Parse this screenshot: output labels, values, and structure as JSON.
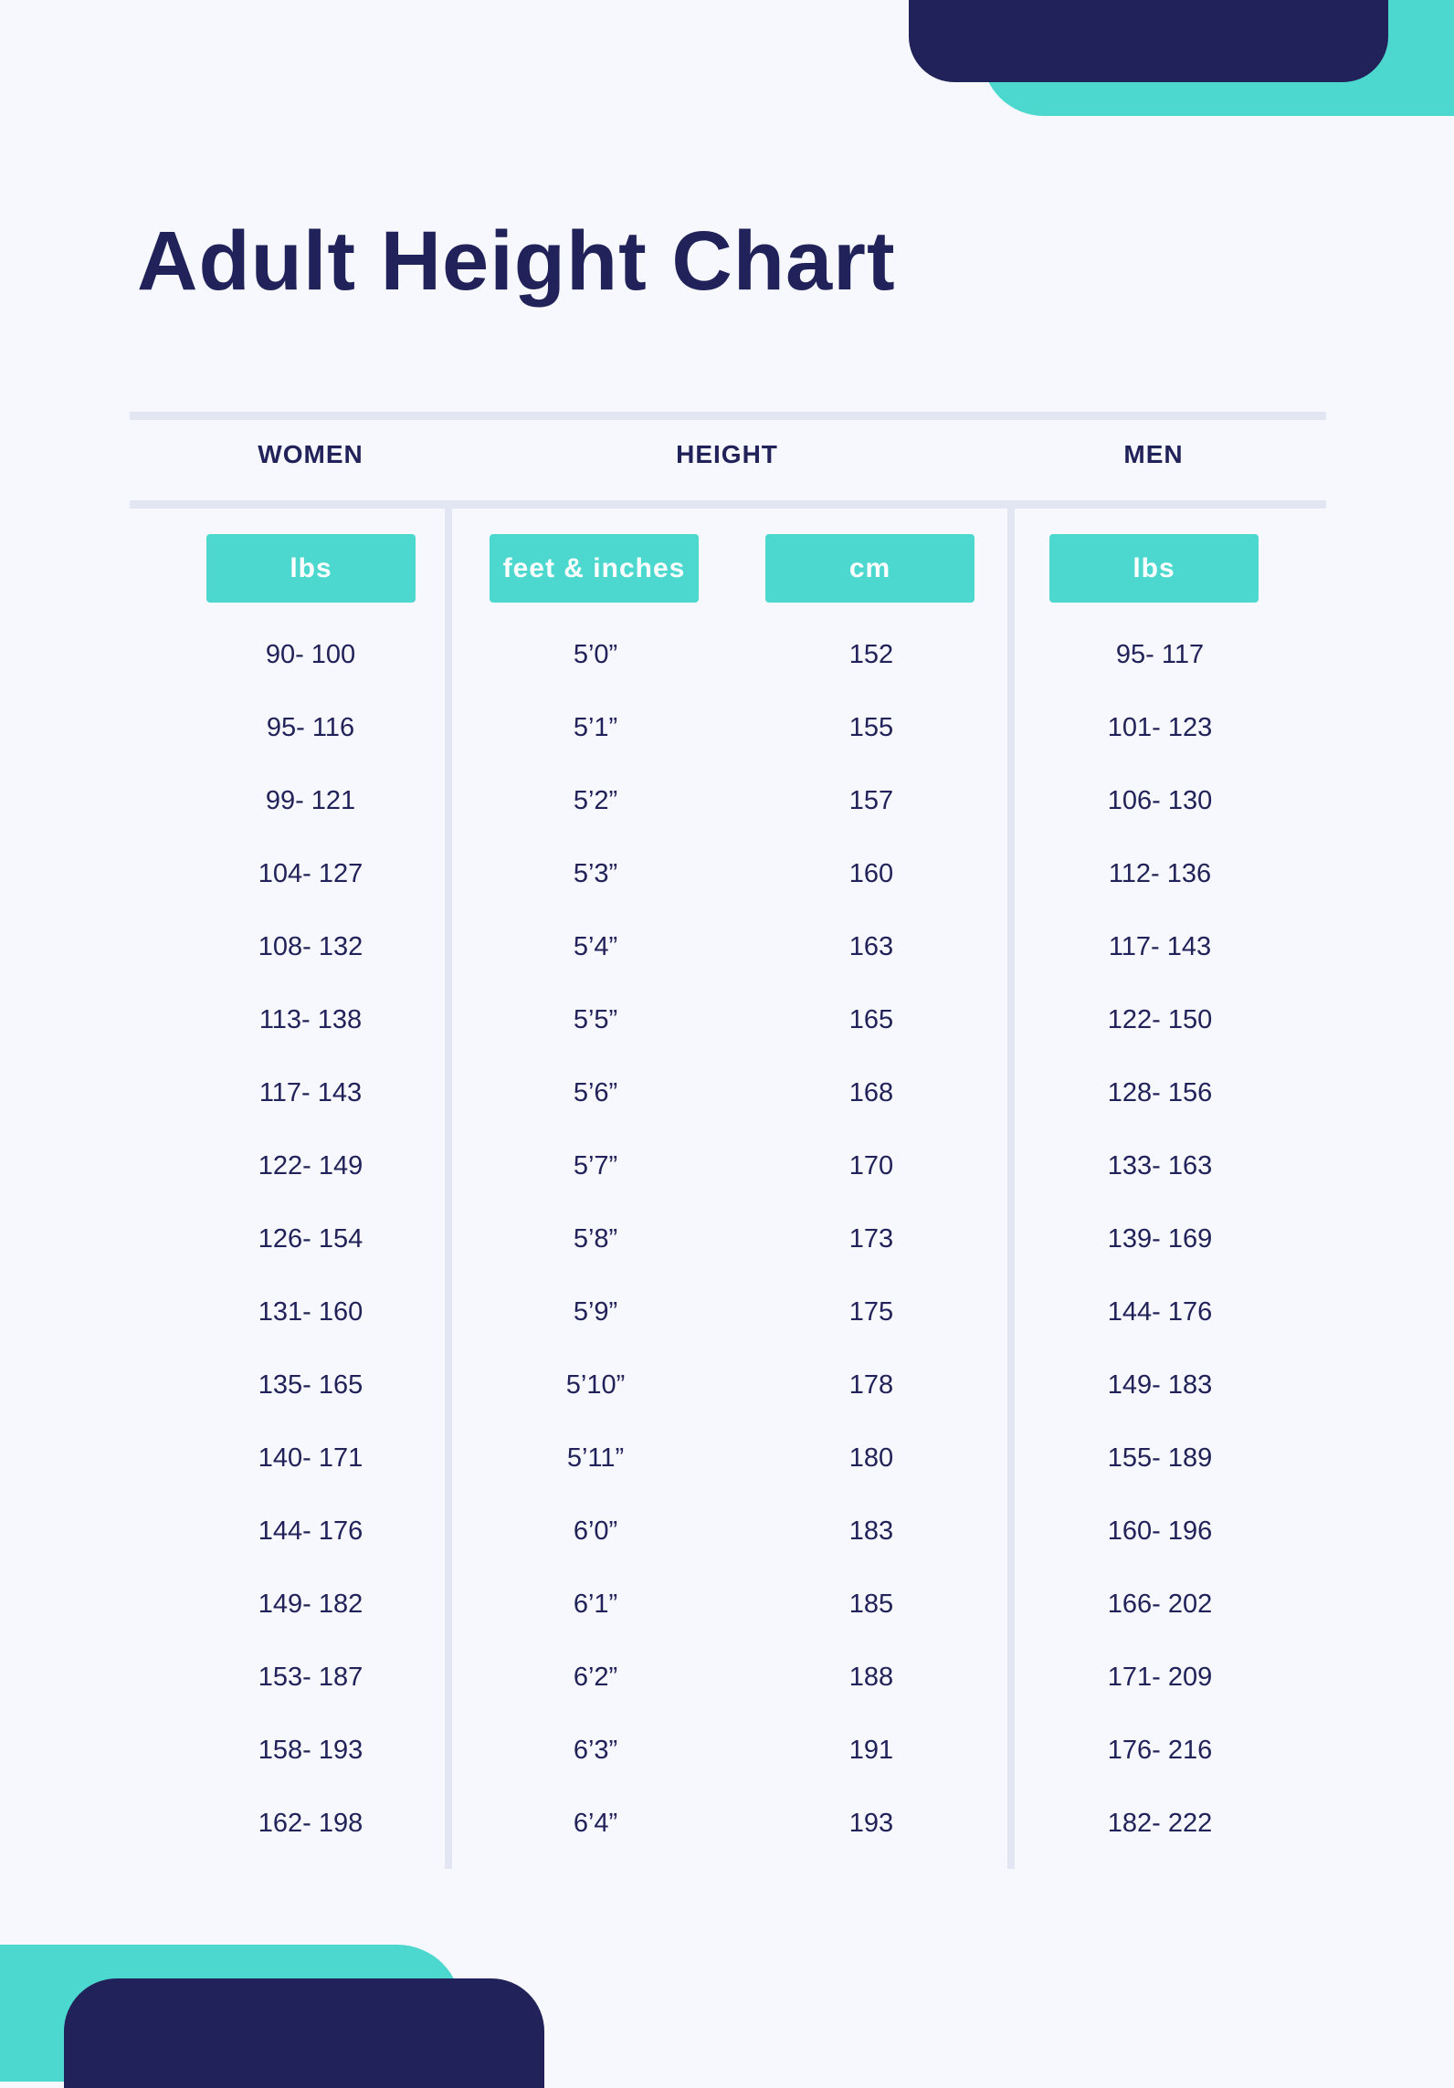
{
  "title": "Adult Height Chart",
  "colors": {
    "navy": "#22225a",
    "teal": "#4dd8cf",
    "rule": "#e2e6f3",
    "background": "#f6f8fd"
  },
  "groups": {
    "women": "WOMEN",
    "height": "HEIGHT",
    "men": "MEN"
  },
  "units": {
    "women": "lbs",
    "feet": "feet & inches",
    "cm": "cm",
    "men": "lbs"
  },
  "rows": [
    {
      "women": "90- 100",
      "feet": "5’0”",
      "cm": "152",
      "men": "95- 117"
    },
    {
      "women": "95- 116",
      "feet": "5’1”",
      "cm": "155",
      "men": "101- 123"
    },
    {
      "women": "99- 121",
      "feet": "5’2”",
      "cm": "157",
      "men": "106- 130"
    },
    {
      "women": "104- 127",
      "feet": "5’3”",
      "cm": "160",
      "men": "112- 136"
    },
    {
      "women": "108- 132",
      "feet": "5’4”",
      "cm": "163",
      "men": "117- 143"
    },
    {
      "women": "113- 138",
      "feet": "5’5”",
      "cm": "165",
      "men": "122- 150"
    },
    {
      "women": "117- 143",
      "feet": "5’6”",
      "cm": "168",
      "men": "128- 156"
    },
    {
      "women": "122- 149",
      "feet": "5’7”",
      "cm": "170",
      "men": "133- 163"
    },
    {
      "women": "126- 154",
      "feet": "5’8”",
      "cm": "173",
      "men": "139- 169"
    },
    {
      "women": "131- 160",
      "feet": "5’9”",
      "cm": "175",
      "men": "144- 176"
    },
    {
      "women": "135- 165",
      "feet": "5’10”",
      "cm": "178",
      "men": "149- 183"
    },
    {
      "women": "140- 171",
      "feet": "5’11”",
      "cm": "180",
      "men": "155- 189"
    },
    {
      "women": "144- 176",
      "feet": "6’0”",
      "cm": "183",
      "men": "160- 196"
    },
    {
      "women": "149- 182",
      "feet": "6’1”",
      "cm": "185",
      "men": "166- 202"
    },
    {
      "women": "153- 187",
      "feet": "6’2”",
      "cm": "188",
      "men": "171- 209"
    },
    {
      "women": "158- 193",
      "feet": "6’3”",
      "cm": "191",
      "men": "176- 216"
    },
    {
      "women": "162- 198",
      "feet": "6’4”",
      "cm": "193",
      "men": "182- 222"
    }
  ]
}
